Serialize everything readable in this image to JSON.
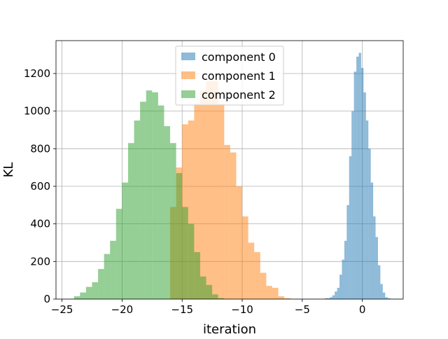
{
  "chart_data": {
    "type": "histogram",
    "xlabel": "iteration",
    "ylabel": "KL",
    "xlim": [
      -25.5,
      3.4
    ],
    "ylim": [
      0,
      1375
    ],
    "grid": true,
    "legend_position": "top-center",
    "xticks": [
      -25,
      -20,
      -15,
      -10,
      -5,
      0
    ],
    "xtick_labels": [
      "−25",
      "−20",
      "−15",
      "−10",
      "−5",
      "0"
    ],
    "yticks": [
      0,
      200,
      400,
      600,
      800,
      1000,
      1200
    ],
    "ytick_labels": [
      "0",
      "200",
      "400",
      "600",
      "800",
      "1000",
      "1200"
    ],
    "series": [
      {
        "name": "component 0",
        "color": "#1f77b4",
        "alpha": 0.5,
        "x_start": -3.1,
        "bin_width": 0.2,
        "counts": [
          5,
          5,
          10,
          20,
          40,
          60,
          130,
          210,
          310,
          500,
          760,
          1000,
          1210,
          1290,
          1310,
          1230,
          1100,
          950,
          800,
          620,
          440,
          330,
          180,
          80,
          35,
          10,
          5,
          2
        ]
      },
      {
        "name": "component 1",
        "color": "#ff7f0e",
        "alpha": 0.5,
        "x_start": -16.0,
        "bin_width": 0.5,
        "counts": [
          490,
          700,
          930,
          950,
          1040,
          1110,
          1160,
          1160,
          1040,
          820,
          780,
          600,
          440,
          300,
          250,
          140,
          70,
          60,
          15,
          5
        ]
      },
      {
        "name": "component 2",
        "color": "#2ca02c",
        "alpha": 0.5,
        "x_start": -24.0,
        "bin_width": 0.5,
        "counts": [
          15,
          35,
          65,
          90,
          160,
          240,
          310,
          480,
          620,
          830,
          950,
          1050,
          1110,
          1100,
          1030,
          920,
          830,
          670,
          490,
          400,
          250,
          120,
          75,
          25,
          5
        ]
      }
    ]
  }
}
